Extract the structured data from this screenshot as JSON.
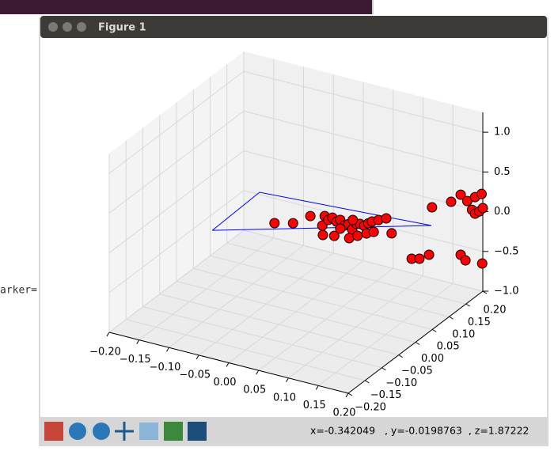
{
  "window": {
    "title": "Figure 1"
  },
  "terminal": {
    "text": "arker="
  },
  "status": {
    "text": "x=-0.342049   , y=-0.0198763  , z=1.87222"
  },
  "chart_data": {
    "type": "scatter3d",
    "xlim": [
      -0.2,
      0.2
    ],
    "ylim": [
      -0.2,
      0.2
    ],
    "zlim": [
      -1.0,
      1.25
    ],
    "xticks": [
      {
        "value": -0.2,
        "label": "−0.20"
      },
      {
        "value": -0.15,
        "label": "−0.15"
      },
      {
        "value": -0.1,
        "label": "−0.10"
      },
      {
        "value": -0.05,
        "label": "−0.05"
      },
      {
        "value": 0,
        "label": "0.00"
      },
      {
        "value": 0.05,
        "label": "0.05"
      },
      {
        "value": 0.1,
        "label": "0.10"
      },
      {
        "value": 0.15,
        "label": "0.15"
      },
      {
        "value": 0.2,
        "label": "0.20"
      }
    ],
    "yticks": [
      {
        "value": -0.2,
        "label": "−0.20"
      },
      {
        "value": -0.15,
        "label": "−0.15"
      },
      {
        "value": -0.1,
        "label": "−0.10"
      },
      {
        "value": -0.05,
        "label": "−0.05"
      },
      {
        "value": 0,
        "label": "0.00"
      },
      {
        "value": 0.05,
        "label": "0.05"
      },
      {
        "value": 0.1,
        "label": "0.10"
      },
      {
        "value": 0.15,
        "label": "0.15"
      },
      {
        "value": 0.2,
        "label": "0.20"
      }
    ],
    "zticks": [
      {
        "value": -1.0,
        "label": "−1.0"
      },
      {
        "value": -0.5,
        "label": "−0.5"
      },
      {
        "value": 0,
        "label": "0.0"
      },
      {
        "value": 0.5,
        "label": "0.5"
      },
      {
        "value": 1.0,
        "label": "1.0"
      }
    ],
    "grid": true,
    "series": [
      {
        "type": "line",
        "color": "#0000ff",
        "x": [
          -0.14,
          -0.061,
          0.114,
          -0.14
        ],
        "y": [
          0,
          0,
          0.2,
          0
        ],
        "z": [
          -0.244,
          0.386,
          -0.339,
          -0.244
        ]
      },
      {
        "type": "scatter",
        "color": "#ff0000",
        "x": [
          -0.036,
          -0.005,
          0.024,
          0.044,
          0.048,
          0.054,
          0.061,
          0.068,
          0.074,
          0.081,
          0.088,
          0.094,
          0.101,
          0.107,
          0.114,
          0.121,
          0.127,
          0.138,
          0.151,
          0.045,
          0.064,
          0.089,
          0.103,
          0.118,
          0.13,
          0.16,
          0.074,
          0.095,
          0.081,
          0.094,
          0.11,
          0.115,
          0.147,
          0.163,
          0.174,
          0.187,
          0.198,
          0.182,
          0.187,
          0.194,
          0.2,
          0.163,
          0.171,
          0.199
        ],
        "y": [
          0,
          0,
          0,
          0,
          0,
          0,
          0,
          0,
          0,
          0,
          0,
          0,
          0,
          0,
          0,
          0,
          0,
          0,
          0,
          0,
          0,
          0,
          0,
          0,
          0,
          0,
          0,
          0,
          0.2,
          0.2,
          0.2,
          0.2,
          0.2,
          0.2,
          0.2,
          0.2,
          0.2,
          0.2,
          0.2,
          0.2,
          0.2,
          0.2,
          0.2,
          0.2
        ],
        "z": [
          0.046,
          0.104,
          0.25,
          0.168,
          0.296,
          0.259,
          0.3,
          0.264,
          0.297,
          0.24,
          0.272,
          0.215,
          0.3,
          0.31,
          0.3,
          0.345,
          0.378,
          0.418,
          0.464,
          0.052,
          0.077,
          0.096,
          0.153,
          0.211,
          0.254,
          0.293,
          0.187,
          0.337,
          -0.82,
          -0.795,
          -0.714,
          -0.108,
          0.023,
          0.143,
          0.084,
          0.159,
          0.219,
          -0.011,
          -0.05,
          -0.008,
          0.045,
          -0.613,
          -0.668,
          -0.654
        ]
      }
    ]
  }
}
